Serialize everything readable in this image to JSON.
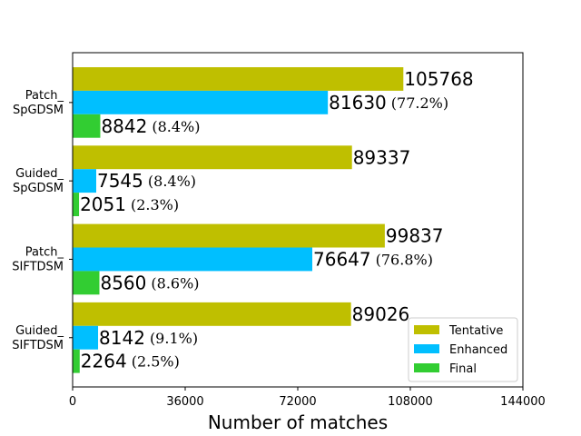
{
  "chart_data": {
    "type": "bar",
    "orientation": "horizontal",
    "xlabel": "Number of matches",
    "ylabel": "",
    "title": "",
    "xlim": [
      0,
      144000
    ],
    "xticks": [
      "0",
      "36000",
      "72000",
      "108000",
      "144000"
    ],
    "categories": [
      "Patch_\nSpGDSM",
      "Guided_\nSpGDSM",
      "Patch_\nSIFTDSM",
      "Guided_\nSIFTDSM"
    ],
    "series": [
      {
        "name": "Tentative",
        "color": "#bfbf00",
        "values": [
          105768,
          89337,
          99837,
          89026
        ],
        "percent_labels": [
          "",
          "",
          "",
          ""
        ]
      },
      {
        "name": "Enhanced",
        "color": "#00bfff",
        "values": [
          81630,
          7545,
          76647,
          8142
        ],
        "percent_labels": [
          "(77.2%)",
          "(8.4%)",
          "(76.8%)",
          "(9.1%)"
        ]
      },
      {
        "name": "Final",
        "color": "#32cd32",
        "values": [
          8842,
          2051,
          8560,
          2264
        ],
        "percent_labels": [
          "(8.4%)",
          "(2.3%)",
          "(8.6%)",
          "(2.5%)"
        ]
      }
    ],
    "legend_position": "lower-right",
    "grid": false
  }
}
